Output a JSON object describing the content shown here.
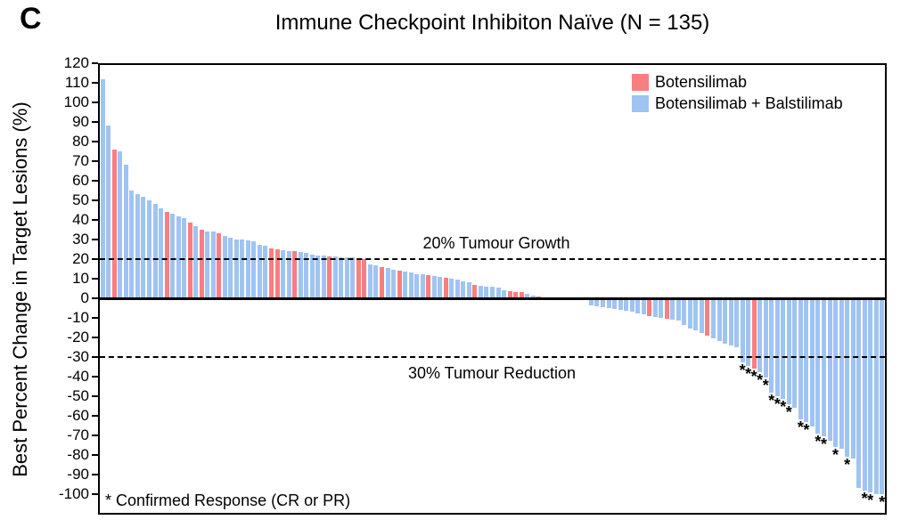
{
  "panel_label": "C",
  "title": "Immune Checkpoint Inhibiton Naïve (N = 135)",
  "y_axis": {
    "label": "Best Percent Change in Target Lesions (%)",
    "tick_max": 120,
    "tick_min": -100,
    "tick_step": 10
  },
  "legend": [
    {
      "key": "BO",
      "label": "Botensilimab",
      "color": "#f97e80"
    },
    {
      "key": "BB",
      "label": "Botensilimab + Balstilimab",
      "color": "#a0c4f2"
    }
  ],
  "annotations": {
    "growth_line": {
      "value": 20,
      "label": "20% Tumour Growth"
    },
    "reduction_line": {
      "value": -30,
      "label": "30% Tumour Reduction"
    },
    "footnote": "* Confirmed Response (CR or PR)"
  },
  "chart_data": {
    "type": "bar",
    "subtype": "waterfall",
    "title": "Immune Checkpoint Inhibiton Naïve (N = 135)",
    "xlabel": "",
    "ylabel": "Best Percent Change in Target Lesions (%)",
    "ylim": [
      -110,
      120
    ],
    "n_patients": 135,
    "grid": false,
    "legend_position": "top-right",
    "reference_lines": [
      20,
      -30
    ],
    "group_labels": {
      "BO": "Botensilimab",
      "BB": "Botensilimab + Balstilimab"
    },
    "group_colors": {
      "BO": "#f97e80",
      "BB": "#a0c4f2"
    },
    "bar_format": [
      "best_percent_change",
      "group",
      "confirmed_response"
    ],
    "bars": [
      [
        112,
        "BB",
        0
      ],
      [
        88,
        "BB",
        0
      ],
      [
        76,
        "BO",
        0
      ],
      [
        75,
        "BB",
        0
      ],
      [
        68,
        "BB",
        0
      ],
      [
        55,
        "BB",
        0
      ],
      [
        53,
        "BB",
        0
      ],
      [
        52,
        "BB",
        0
      ],
      [
        50,
        "BB",
        0
      ],
      [
        48,
        "BB",
        0
      ],
      [
        46,
        "BB",
        0
      ],
      [
        44,
        "BO",
        0
      ],
      [
        43,
        "BB",
        0
      ],
      [
        42,
        "BB",
        0
      ],
      [
        41,
        "BB",
        0
      ],
      [
        38.5,
        "BO",
        0
      ],
      [
        37,
        "BB",
        0
      ],
      [
        35,
        "BO",
        0
      ],
      [
        34,
        "BB",
        0
      ],
      [
        34,
        "BB",
        0
      ],
      [
        33,
        "BO",
        0
      ],
      [
        32,
        "BB",
        0
      ],
      [
        31,
        "BB",
        0
      ],
      [
        30,
        "BB",
        0
      ],
      [
        30,
        "BB",
        0
      ],
      [
        29.5,
        "BB",
        0
      ],
      [
        29,
        "BB",
        0
      ],
      [
        27.5,
        "BB",
        0
      ],
      [
        27,
        "BB",
        0
      ],
      [
        25.5,
        "BO",
        0
      ],
      [
        25,
        "BO",
        0
      ],
      [
        24.5,
        "BB",
        0
      ],
      [
        24,
        "BB",
        0
      ],
      [
        24,
        "BO",
        0
      ],
      [
        23.5,
        "BB",
        0
      ],
      [
        23,
        "BB",
        0
      ],
      [
        22.5,
        "BB",
        0
      ],
      [
        22,
        "BB",
        0
      ],
      [
        22,
        "BB",
        0
      ],
      [
        21.5,
        "BO",
        0
      ],
      [
        21.5,
        "BB",
        0
      ],
      [
        21,
        "BB",
        0
      ],
      [
        21,
        "BB",
        0
      ],
      [
        21,
        "BB",
        0
      ],
      [
        20.5,
        "BO",
        0
      ],
      [
        20,
        "BO",
        0
      ],
      [
        17.5,
        "BB",
        0
      ],
      [
        17,
        "BB",
        0
      ],
      [
        16,
        "BO",
        0
      ],
      [
        15.5,
        "BB",
        0
      ],
      [
        14.5,
        "BB",
        0
      ],
      [
        14,
        "BO",
        0
      ],
      [
        13.5,
        "BB",
        0
      ],
      [
        13,
        "BB",
        0
      ],
      [
        12.5,
        "BB",
        0
      ],
      [
        12.5,
        "BB",
        0
      ],
      [
        12,
        "BO",
        0
      ],
      [
        11.5,
        "BB",
        0
      ],
      [
        11,
        "BB",
        0
      ],
      [
        10.5,
        "BO",
        0
      ],
      [
        10,
        "BB",
        0
      ],
      [
        9.5,
        "BB",
        0
      ],
      [
        8.5,
        "BB",
        0
      ],
      [
        8,
        "BB",
        0
      ],
      [
        7,
        "BO",
        0
      ],
      [
        6.5,
        "BB",
        0
      ],
      [
        6,
        "BB",
        0
      ],
      [
        6,
        "BB",
        0
      ],
      [
        5.5,
        "BB",
        0
      ],
      [
        4,
        "BB",
        0
      ],
      [
        3.5,
        "BO",
        0
      ],
      [
        3,
        "BO",
        0
      ],
      [
        3,
        "BO",
        0
      ],
      [
        2.5,
        "BB",
        0
      ],
      [
        1.5,
        "BB",
        0
      ],
      [
        1,
        "BO",
        0
      ],
      [
        0,
        "BB",
        0
      ],
      [
        0,
        "BB",
        0
      ],
      [
        0,
        "BB",
        0
      ],
      [
        0,
        "BB",
        0
      ],
      [
        0,
        "BB",
        0
      ],
      [
        0,
        "BB",
        0
      ],
      [
        0,
        "BB",
        0
      ],
      [
        0,
        "BB",
        0
      ],
      [
        -3.5,
        "BB",
        0
      ],
      [
        -4,
        "BB",
        0
      ],
      [
        -4.5,
        "BB",
        0
      ],
      [
        -5,
        "BB",
        0
      ],
      [
        -5.5,
        "BB",
        0
      ],
      [
        -6,
        "BB",
        0
      ],
      [
        -6.5,
        "BB",
        0
      ],
      [
        -7,
        "BB",
        0
      ],
      [
        -7.5,
        "BB",
        0
      ],
      [
        -8,
        "BB",
        0
      ],
      [
        -9,
        "BO",
        0
      ],
      [
        -9.5,
        "BB",
        0
      ],
      [
        -10,
        "BB",
        0
      ],
      [
        -10.5,
        "BO",
        0
      ],
      [
        -11,
        "BB",
        0
      ],
      [
        -11.5,
        "BB",
        0
      ],
      [
        -13.5,
        "BB",
        0
      ],
      [
        -15.5,
        "BB",
        0
      ],
      [
        -16.5,
        "BB",
        0
      ],
      [
        -17.5,
        "BB",
        0
      ],
      [
        -19,
        "BO",
        0
      ],
      [
        -20.5,
        "BB",
        0
      ],
      [
        -22,
        "BB",
        0
      ],
      [
        -23,
        "BB",
        0
      ],
      [
        -24,
        "BB",
        0
      ],
      [
        -25,
        "BB",
        0
      ],
      [
        -32.5,
        "BB",
        1
      ],
      [
        -34.5,
        "BB",
        1
      ],
      [
        -36,
        "BO",
        1
      ],
      [
        -37.5,
        "BB",
        1
      ],
      [
        -40.5,
        "BB",
        1
      ],
      [
        -48,
        "BB",
        1
      ],
      [
        -50,
        "BB",
        1
      ],
      [
        -51.5,
        "BB",
        1
      ],
      [
        -54,
        "BB",
        1
      ],
      [
        -56,
        "BB",
        0
      ],
      [
        -62,
        "BB",
        1
      ],
      [
        -63,
        "BB",
        1
      ],
      [
        -65.5,
        "BB",
        0
      ],
      [
        -69,
        "BB",
        1
      ],
      [
        -70.5,
        "BB",
        1
      ],
      [
        -72.5,
        "BB",
        0
      ],
      [
        -76,
        "BB",
        1
      ],
      [
        -77,
        "BB",
        0
      ],
      [
        -81,
        "BB",
        1
      ],
      [
        -82,
        "BB",
        0
      ],
      [
        -97,
        "BB",
        0
      ],
      [
        -98,
        "BB",
        1
      ],
      [
        -99,
        "BB",
        1
      ],
      [
        -100,
        "BB",
        0
      ],
      [
        -100,
        "BB",
        1
      ]
    ]
  }
}
